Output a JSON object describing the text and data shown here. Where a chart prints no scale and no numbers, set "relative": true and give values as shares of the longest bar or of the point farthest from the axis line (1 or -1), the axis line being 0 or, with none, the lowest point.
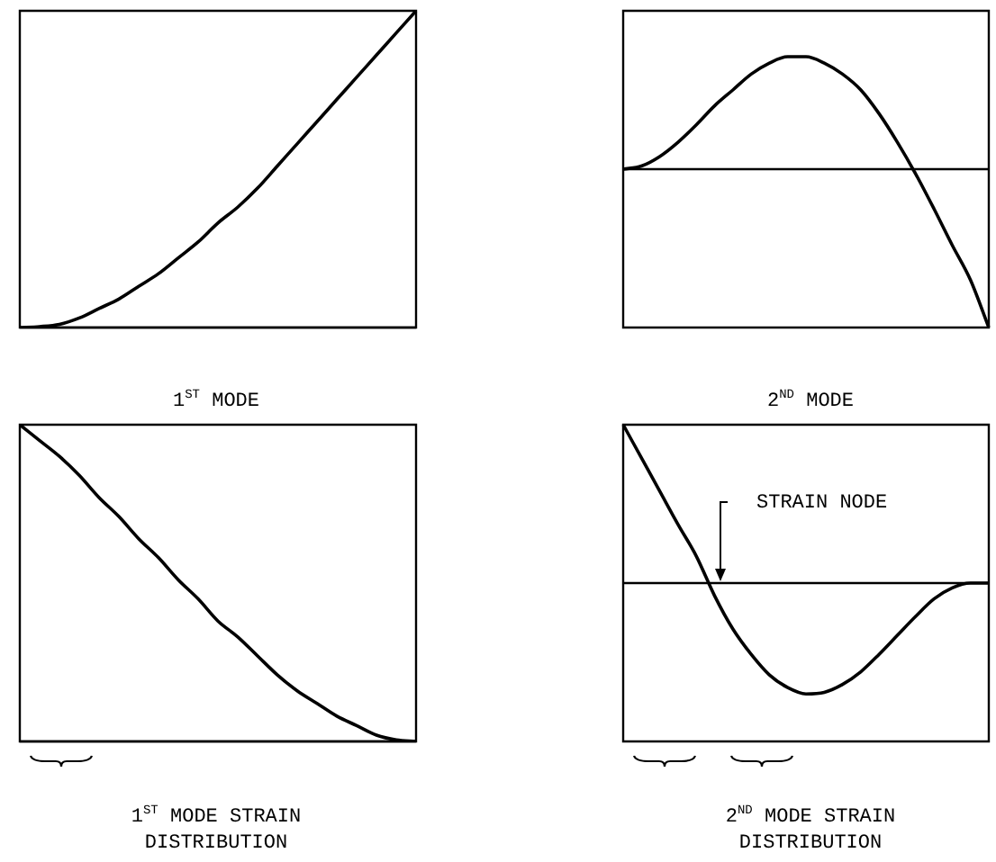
{
  "chart_data": [
    {
      "type": "line",
      "title": "1$^{ST}$ MODE",
      "categories": [
        null,
        null,
        null,
        null,
        null,
        null,
        null,
        null,
        null,
        null,
        null,
        null,
        null,
        null,
        null,
        null,
        null,
        null,
        null,
        null,
        null
      ],
      "color": "#000000",
      "relative": true,
      "tick_labels": false,
      "values": [
        0,
        0.003,
        0.01,
        0.03,
        0.06,
        0.09,
        0.13,
        0.17,
        0.22,
        0.27,
        0.33,
        0.38,
        0.44,
        0.51,
        0.58,
        0.65,
        0.72,
        0.79,
        0.86,
        0.93,
        1
      ]
    },
    {
      "type": "line",
      "title": "2$^{ND}$ MODE",
      "categories": [
        null,
        null,
        null,
        null,
        null,
        null,
        null,
        null,
        null,
        null,
        null,
        null,
        null,
        null,
        null,
        null,
        null,
        null,
        null,
        null,
        null
      ],
      "color": "#000000",
      "relative": true,
      "tick_labels": false,
      "values": [
        0,
        0.02,
        0.08,
        0.17,
        0.28,
        0.4,
        0.5,
        0.6,
        0.67,
        0.71,
        0.71,
        0.67,
        0.6,
        0.5,
        0.35,
        0.17,
        -0.03,
        -0.25,
        -0.48,
        -0.7,
        -1
      ]
    },
    {
      "type": "line",
      "title": "1$^{ST}$ MODE STRAIN DISTRIBUTION",
      "categories": [
        null,
        null,
        null,
        null,
        null,
        null,
        null,
        null,
        null,
        null,
        null,
        null,
        null,
        null,
        null,
        null,
        null,
        null,
        null,
        null,
        null
      ],
      "color": "#000000",
      "relative": true,
      "tick_labels": false,
      "values": [
        1,
        0.95,
        0.9,
        0.84,
        0.77,
        0.71,
        0.64,
        0.58,
        0.51,
        0.45,
        0.38,
        0.33,
        0.27,
        0.21,
        0.16,
        0.12,
        0.08,
        0.05,
        0.02,
        0.005,
        0
      ]
    },
    {
      "type": "line",
      "title": "2$^{ND}$ MODE STRAIN DISTRIBUTION",
      "categories": [
        null,
        null,
        null,
        null,
        null,
        null,
        null,
        null,
        null,
        null,
        null,
        null,
        null,
        null,
        null,
        null,
        null,
        null,
        null,
        null,
        null
      ],
      "color": "#000000",
      "relative": true,
      "tick_labels": false,
      "values": [
        1,
        0.79,
        0.58,
        0.37,
        0.17,
        -0.08,
        -0.29,
        -0.45,
        -0.58,
        -0.66,
        -0.7,
        -0.69,
        -0.64,
        -0.56,
        -0.45,
        -0.33,
        -0.21,
        -0.1,
        -0.03,
        0,
        0
      ],
      "annotations": [
        "STRAIN NODE"
      ]
    }
  ]
}
